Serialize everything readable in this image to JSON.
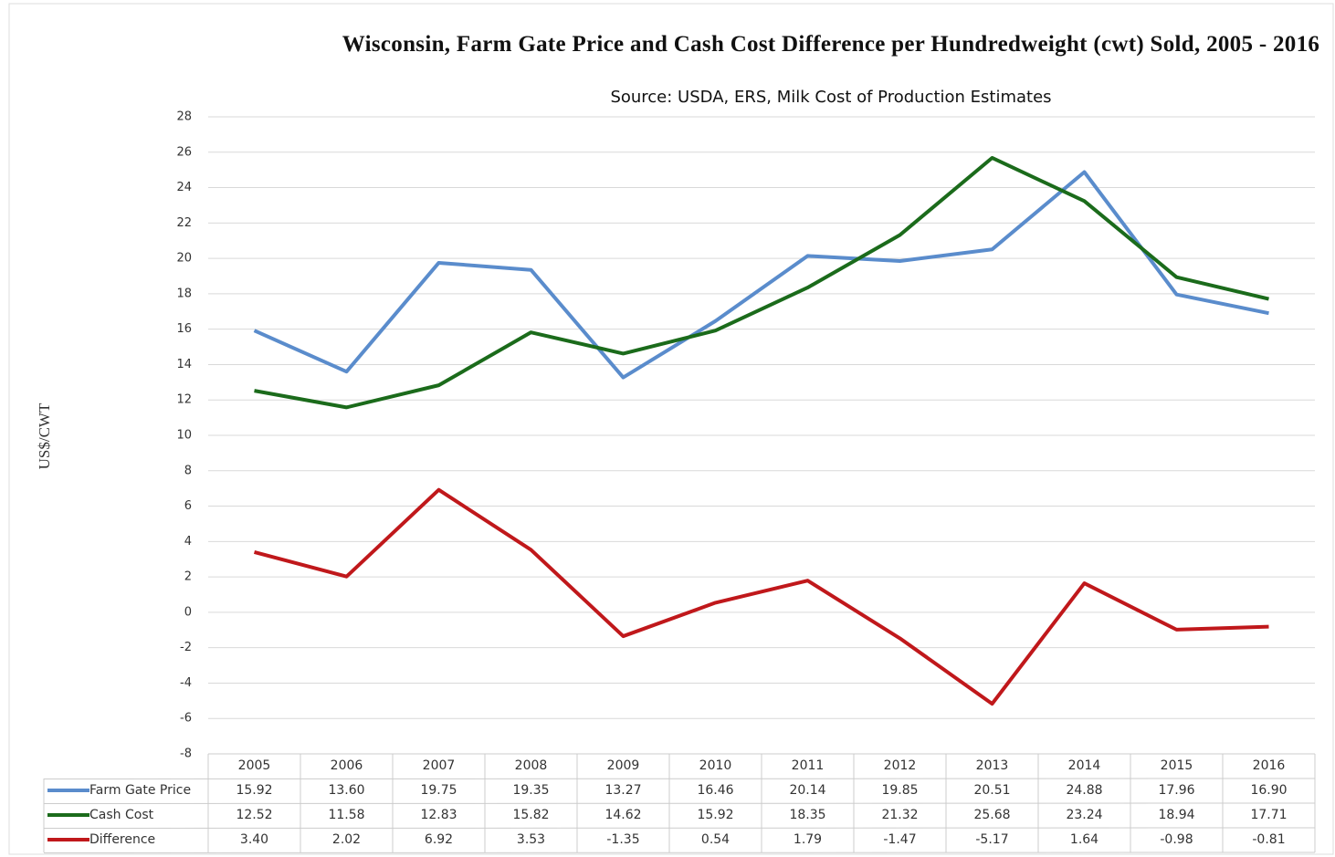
{
  "chart_data": {
    "type": "line",
    "title": "Wisconsin, Farm Gate Price and Cash Cost Difference per Hundredweight (cwt) Sold, 2005 - 2016",
    "subtitle": "Source: USDA, ERS, Milk Cost of Production Estimates",
    "y_label": "US$/CWT",
    "categories": [
      "2005",
      "2006",
      "2007",
      "2008",
      "2009",
      "2010",
      "2011",
      "2012",
      "2013",
      "2014",
      "2015",
      "2016"
    ],
    "series": [
      {
        "name": "Farm Gate Price",
        "color": "#5a8ccc",
        "values": [
          15.92,
          13.6,
          19.75,
          19.35,
          13.27,
          16.46,
          20.14,
          19.85,
          20.51,
          24.88,
          17.96,
          16.9
        ],
        "value_labels": [
          "15.92",
          "13.60",
          "19.75",
          "19.35",
          "13.27",
          "16.46",
          "20.14",
          "19.85",
          "20.51",
          "24.88",
          "17.96",
          "16.90"
        ]
      },
      {
        "name": "Cash Cost",
        "color": "#1b6b1b",
        "values": [
          12.52,
          11.58,
          12.83,
          15.82,
          14.62,
          15.92,
          18.35,
          21.32,
          25.68,
          23.24,
          18.94,
          17.71
        ],
        "value_labels": [
          "12.52",
          "11.58",
          "12.83",
          "15.82",
          "14.62",
          "15.92",
          "18.35",
          "21.32",
          "25.68",
          "23.24",
          "18.94",
          "17.71"
        ]
      },
      {
        "name": "Difference",
        "color": "#c0181b",
        "values": [
          3.4,
          2.02,
          6.92,
          3.53,
          -1.35,
          0.54,
          1.79,
          -1.47,
          -5.17,
          1.64,
          -0.98,
          -0.81
        ],
        "value_labels": [
          "3.40",
          "2.02",
          "6.92",
          "3.53",
          "-1.35",
          "0.54",
          "1.79",
          "-1.47",
          "-5.17",
          "1.64",
          "-0.98",
          "-0.81"
        ]
      }
    ],
    "ylim": [
      -8,
      28
    ],
    "yticks": [
      -8,
      -6,
      -4,
      -2,
      0,
      2,
      4,
      6,
      8,
      10,
      12,
      14,
      16,
      18,
      20,
      22,
      24,
      26,
      28
    ],
    "grid": true
  }
}
